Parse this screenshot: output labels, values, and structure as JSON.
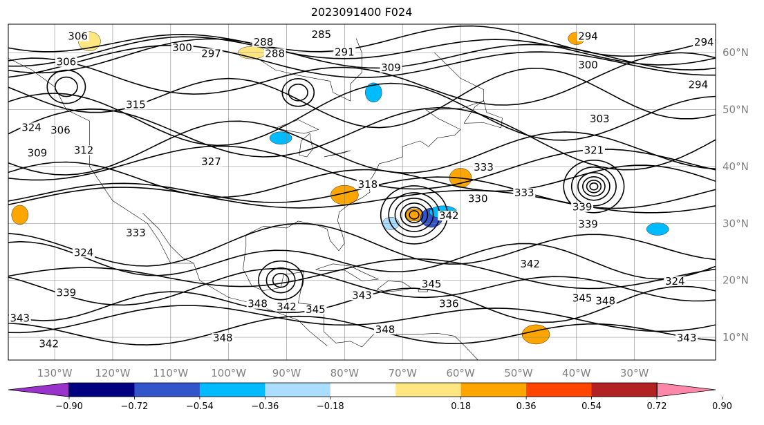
{
  "title": "2023091400 F024",
  "colors": {
    "contour": "#000000",
    "grid": "#7f7f7f",
    "coast": "#000000",
    "tick_label": "#808080"
  },
  "chart_data": {
    "type": "map",
    "lon_range": [
      -138,
      -16
    ],
    "lat_range": [
      6,
      65
    ],
    "lon_ticks": [
      {
        "value": -130,
        "label": "130°W"
      },
      {
        "value": -120,
        "label": "120°W"
      },
      {
        "value": -110,
        "label": "110°W"
      },
      {
        "value": -100,
        "label": "100°W"
      },
      {
        "value": -90,
        "label": "90°W"
      },
      {
        "value": -80,
        "label": "80°W"
      },
      {
        "value": -70,
        "label": "70°W"
      },
      {
        "value": -60,
        "label": "60°W"
      },
      {
        "value": -50,
        "label": "50°W"
      },
      {
        "value": -40,
        "label": "40°W"
      },
      {
        "value": -30,
        "label": "30°W"
      }
    ],
    "lat_ticks": [
      {
        "value": 60,
        "label": "60°N"
      },
      {
        "value": 50,
        "label": "50°N"
      },
      {
        "value": 40,
        "label": "40°N"
      },
      {
        "value": 30,
        "label": "30°N"
      },
      {
        "value": 20,
        "label": "20°N"
      },
      {
        "value": 10,
        "label": "10°N"
      }
    ],
    "contour_labels": [
      {
        "text": "306",
        "lon": -126,
        "lat": 62.5
      },
      {
        "text": "306",
        "lon": -128,
        "lat": 58
      },
      {
        "text": "300",
        "lon": -108,
        "lat": 60.5
      },
      {
        "text": "297",
        "lon": -103,
        "lat": 59.5
      },
      {
        "text": "288",
        "lon": -94,
        "lat": 61.5
      },
      {
        "text": "288",
        "lon": -92,
        "lat": 59.5
      },
      {
        "text": "285",
        "lon": -84,
        "lat": 62.8
      },
      {
        "text": "291",
        "lon": -80,
        "lat": 59.7
      },
      {
        "text": "309",
        "lon": -72,
        "lat": 57
      },
      {
        "text": "294",
        "lon": -38,
        "lat": 62.5
      },
      {
        "text": "294",
        "lon": -18,
        "lat": 61.5
      },
      {
        "text": "300",
        "lon": -38,
        "lat": 57.5
      },
      {
        "text": "294",
        "lon": -19,
        "lat": 54
      },
      {
        "text": "303",
        "lon": -36,
        "lat": 48
      },
      {
        "text": "321",
        "lon": -37,
        "lat": 42.5
      },
      {
        "text": "315",
        "lon": -116,
        "lat": 50.5
      },
      {
        "text": "306",
        "lon": -129,
        "lat": 46
      },
      {
        "text": "312",
        "lon": -125,
        "lat": 42.5
      },
      {
        "text": "309",
        "lon": -133,
        "lat": 42
      },
      {
        "text": "324",
        "lon": -134,
        "lat": 46.5
      },
      {
        "text": "327",
        "lon": -103,
        "lat": 40.5
      },
      {
        "text": "318",
        "lon": -76,
        "lat": 36.5
      },
      {
        "text": "333",
        "lon": -56,
        "lat": 39.5
      },
      {
        "text": "330",
        "lon": -57,
        "lat": 34
      },
      {
        "text": "333",
        "lon": -49,
        "lat": 35
      },
      {
        "text": "342",
        "lon": -62,
        "lat": 31
      },
      {
        "text": "339",
        "lon": -39,
        "lat": 32.5
      },
      {
        "text": "339",
        "lon": -38,
        "lat": 29.5
      },
      {
        "text": "333",
        "lon": -116,
        "lat": 28
      },
      {
        "text": "324",
        "lon": -125,
        "lat": 24.5
      },
      {
        "text": "342",
        "lon": -48,
        "lat": 22.5
      },
      {
        "text": "324",
        "lon": -23,
        "lat": 19.5
      },
      {
        "text": "339",
        "lon": -128,
        "lat": 17.5
      },
      {
        "text": "348",
        "lon": -95,
        "lat": 15.5
      },
      {
        "text": "342",
        "lon": -90,
        "lat": 15
      },
      {
        "text": "345",
        "lon": -85,
        "lat": 14.5
      },
      {
        "text": "343",
        "lon": -77,
        "lat": 17
      },
      {
        "text": "345",
        "lon": -65,
        "lat": 19
      },
      {
        "text": "336",
        "lon": -62,
        "lat": 15.5
      },
      {
        "text": "345",
        "lon": -39,
        "lat": 16.5
      },
      {
        "text": "348",
        "lon": -35,
        "lat": 16
      },
      {
        "text": "348",
        "lon": -101,
        "lat": 9.5
      },
      {
        "text": "348",
        "lon": -73,
        "lat": 11
      },
      {
        "text": "342",
        "lon": -131,
        "lat": 8.5
      },
      {
        "text": "343",
        "lon": -136,
        "lat": 13
      },
      {
        "text": "343",
        "lon": -21,
        "lat": 9.5
      }
    ],
    "colorbar": {
      "ticks": [
        "−0.90",
        "−0.72",
        "−0.54",
        "−0.36",
        "−0.18",
        "0.18",
        "0.36",
        "0.54",
        "0.72",
        "0.90"
      ],
      "colors": [
        "#9933cc",
        "#000080",
        "#3355cc",
        "#00bbff",
        "#aaddff",
        "#ffffff",
        "#ffe680",
        "#ffa500",
        "#ff4500",
        "#b22222",
        "#ff88aa"
      ]
    },
    "shaded_areas": [
      {
        "lon": -68,
        "lat": 31.5,
        "color": "#ffa500"
      },
      {
        "lon": -65,
        "lat": 31,
        "color": "#3355cc"
      },
      {
        "lon": -63,
        "lat": 32,
        "color": "#00bbff"
      },
      {
        "lon": -75,
        "lat": 53,
        "color": "#00bbff"
      },
      {
        "lon": -91,
        "lat": 45,
        "color": "#00bbff"
      },
      {
        "lon": -47,
        "lat": 10.5,
        "color": "#ffa500"
      },
      {
        "lon": -40,
        "lat": 62.5,
        "color": "#ffa500"
      },
      {
        "lon": -124,
        "lat": 62,
        "color": "#ffe680"
      },
      {
        "lon": -96,
        "lat": 60,
        "color": "#ffe680"
      },
      {
        "lon": -136,
        "lat": 31.5,
        "color": "#ffa500"
      },
      {
        "lon": -26,
        "lat": 29,
        "color": "#00bbff"
      },
      {
        "lon": -80,
        "lat": 35,
        "color": "#ffa500"
      },
      {
        "lon": -72,
        "lat": 30,
        "color": "#aaddff"
      },
      {
        "lon": -60,
        "lat": 38,
        "color": "#ffa500"
      }
    ]
  }
}
